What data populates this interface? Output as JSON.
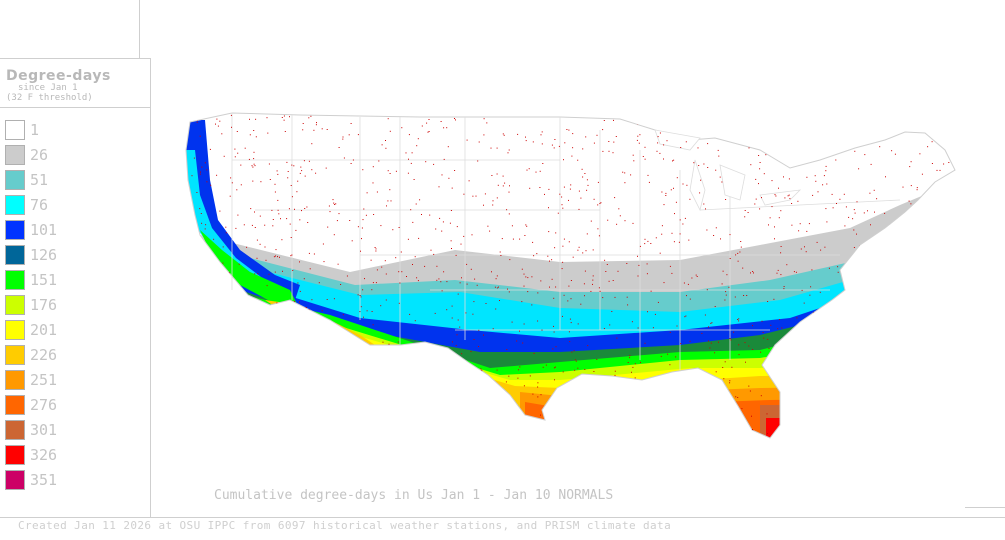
{
  "legend": {
    "title": "Degree-days",
    "subtitle_line1": "since Jan 1",
    "subtitle_line2": "(32 F threshold)",
    "items": [
      {
        "label": "1",
        "color": "#ffffff"
      },
      {
        "label": "26",
        "color": "#cccccc"
      },
      {
        "label": "51",
        "color": "#66cccc"
      },
      {
        "label": "76",
        "color": "#00ffff"
      },
      {
        "label": "101",
        "color": "#0033ff"
      },
      {
        "label": "126",
        "color": "#006699"
      },
      {
        "label": "151",
        "color": "#00ff00"
      },
      {
        "label": "176",
        "color": "#ccff00"
      },
      {
        "label": "201",
        "color": "#ffff00"
      },
      {
        "label": "226",
        "color": "#ffcc00"
      },
      {
        "label": "251",
        "color": "#ff9900"
      },
      {
        "label": "276",
        "color": "#ff6600"
      },
      {
        "label": "301",
        "color": "#cc6633"
      },
      {
        "label": "326",
        "color": "#ff0000"
      },
      {
        "label": "351",
        "color": "#cc0066"
      }
    ]
  },
  "map": {
    "title": "Cumulative degree-days in Us  Jan 1 - Jan 10 NORMALS",
    "station_dot_color": "#cc0000",
    "border_color": "#dddddd"
  },
  "footer": {
    "credit": "Created Jan 11 2026 at OSU IPPC from 6097 historical weather stations, and PRISM climate data"
  }
}
